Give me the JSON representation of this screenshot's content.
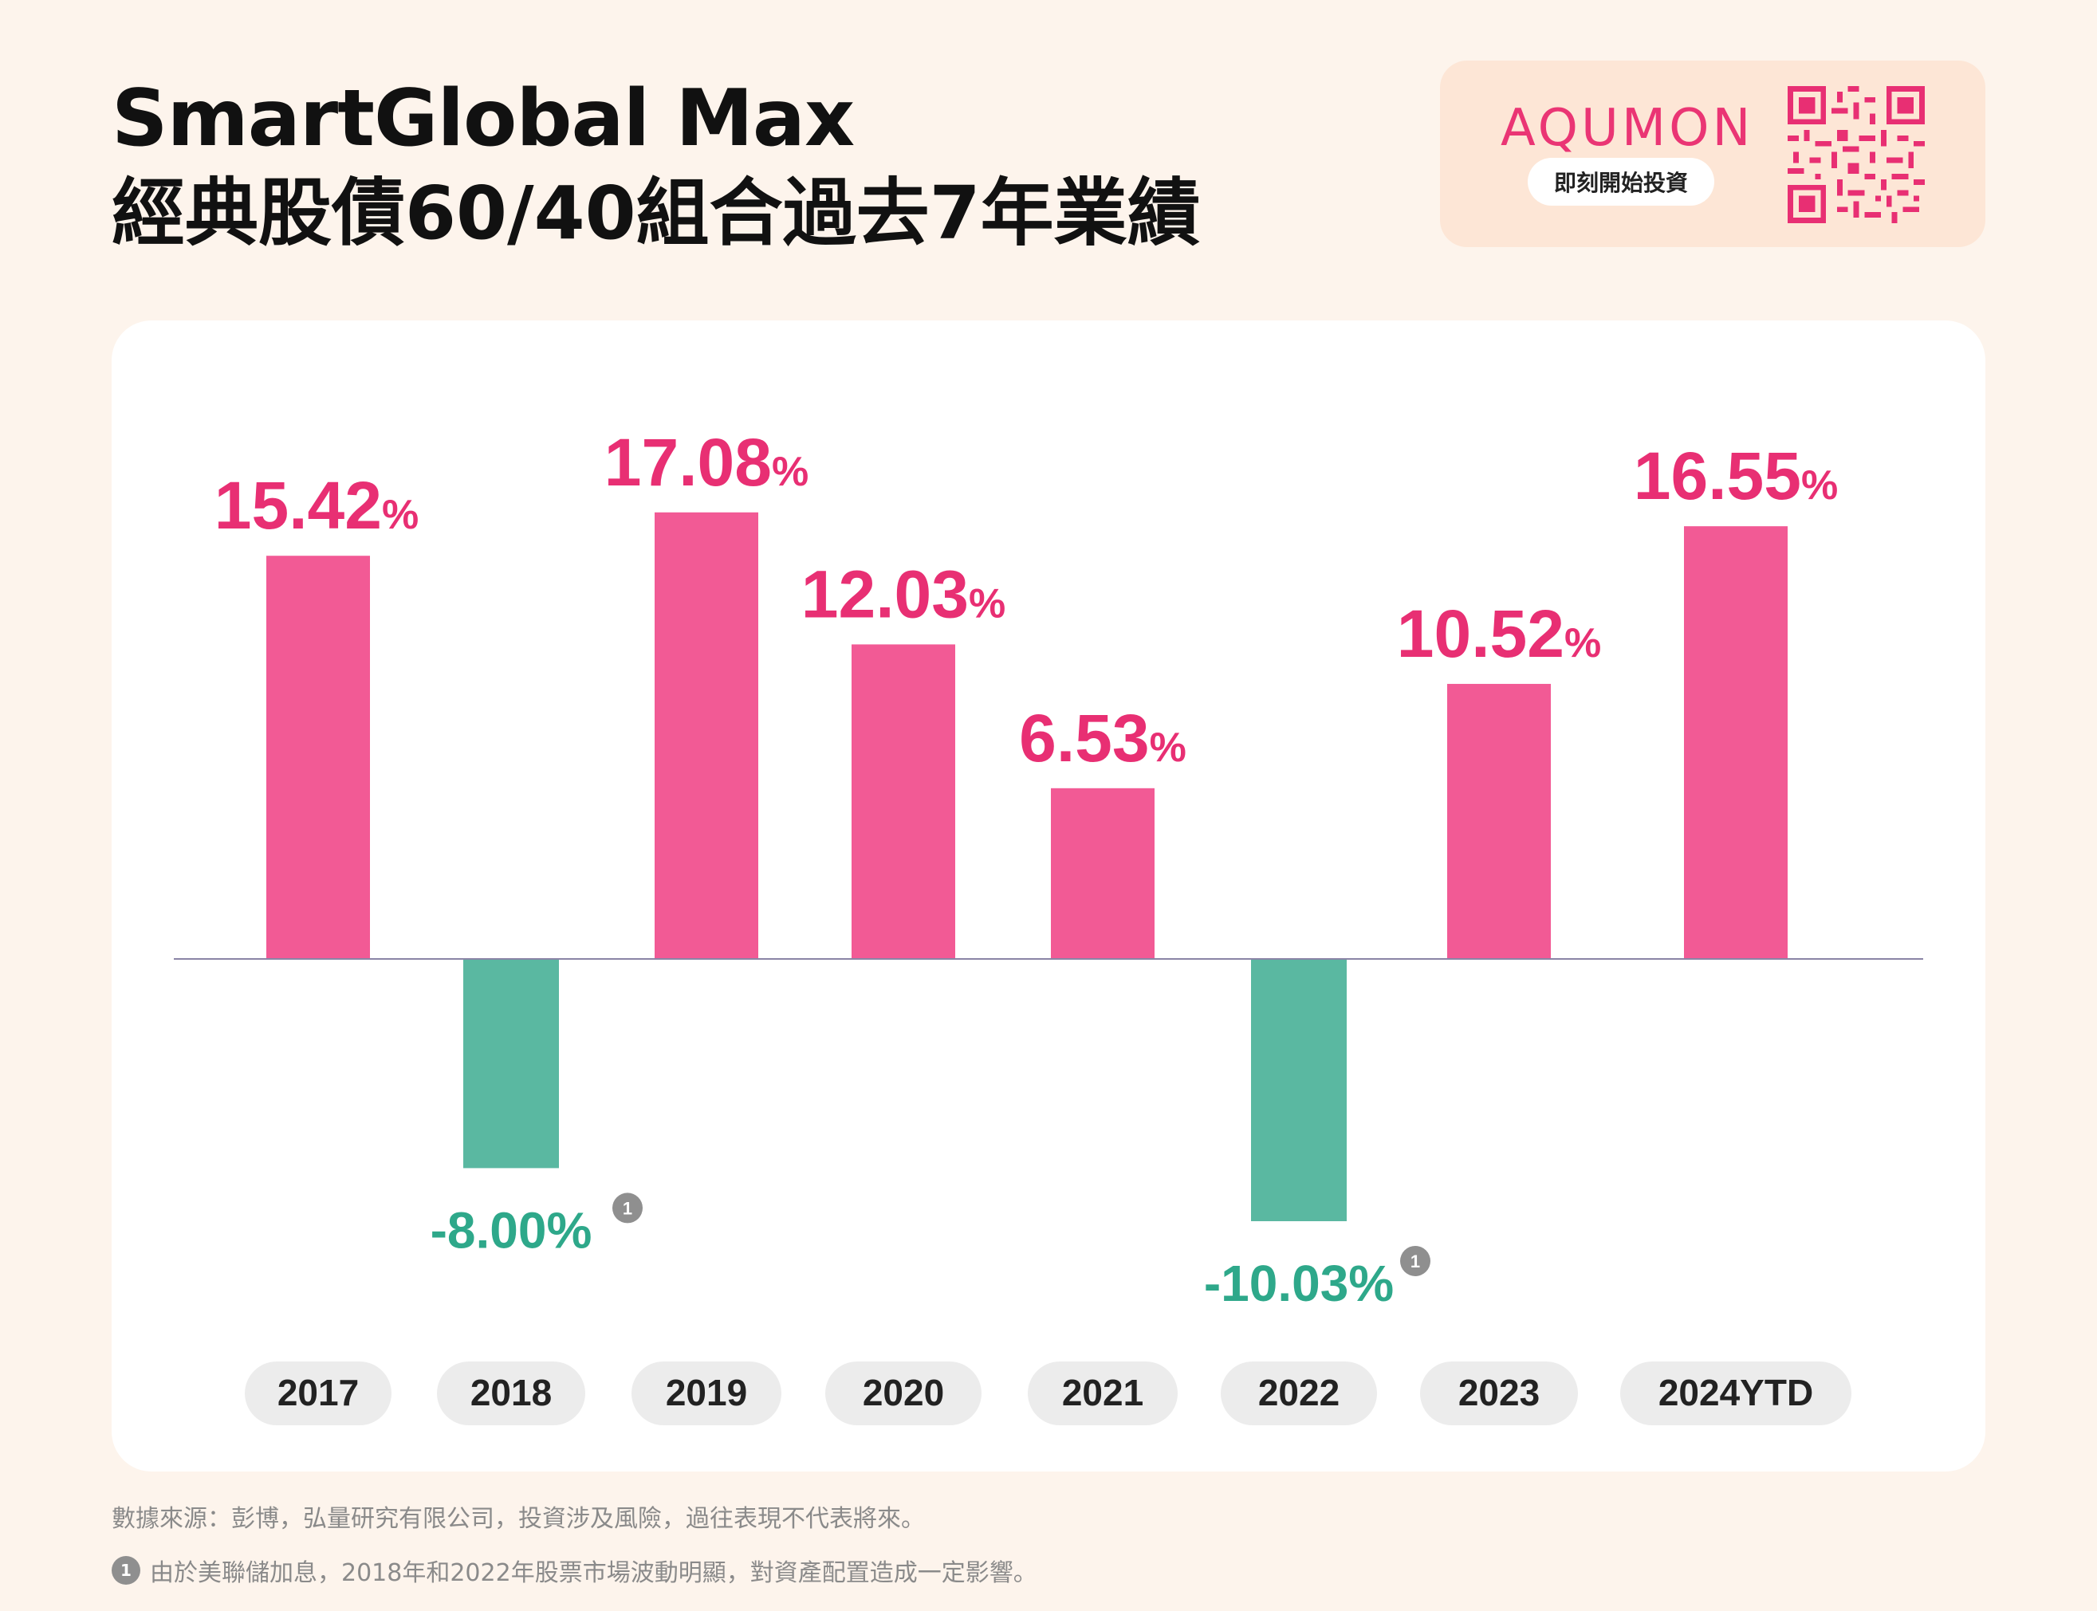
{
  "header": {
    "title_line1": "SmartGlobal Max",
    "title_line2": "經典股債60/40組合過去7年業績"
  },
  "brand": {
    "name": "AQUMON",
    "cta": "即刻開始投資"
  },
  "footnotes": {
    "source": "數據來源：彭博，弘量研究有限公司，投資涉及風險，過往表現不代表將來。",
    "note1_marker": "1",
    "note1": "由於美聯儲加息，2018年和2022年股票市場波動明顯，對資產配置造成一定影響。"
  },
  "colors": {
    "positive": "#f25a95",
    "positive_label": "#e82f73",
    "negative": "#5ab8a1",
    "negative_label": "#2ea88a",
    "pill": "#ececec",
    "note_badge": "#8f8f8f"
  },
  "chart_data": {
    "type": "bar",
    "categories": [
      "2017",
      "2018",
      "2019",
      "2020",
      "2021",
      "2022",
      "2023",
      "2024YTD"
    ],
    "values": [
      15.42,
      -8.0,
      17.08,
      12.03,
      6.53,
      -10.03,
      10.52,
      16.55
    ],
    "unit": "%",
    "value_labels": [
      "15.42",
      "-8.00",
      "17.08",
      "12.03",
      "6.53",
      "-10.03",
      "10.52",
      "16.55"
    ],
    "footnote_marks": [
      "",
      "1",
      "",
      "",
      "",
      "1",
      "",
      ""
    ],
    "ylim": [
      -10.03,
      17.08
    ],
    "grid": false,
    "legend": "none"
  }
}
